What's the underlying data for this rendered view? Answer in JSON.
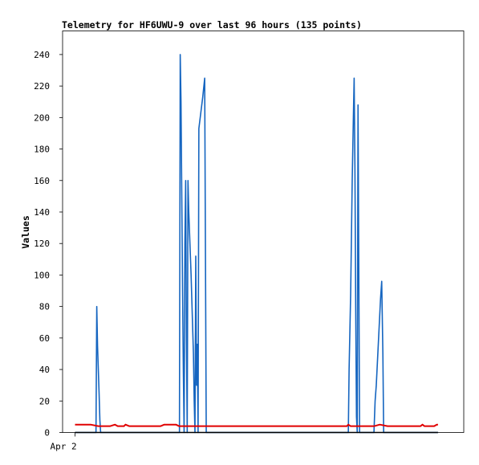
{
  "chart_data": {
    "type": "line",
    "title": "Telemetry for HF6UWU-9 over last 96 hours (135 points)",
    "xlabel": "",
    "ylabel": "Values",
    "ylim": [
      0,
      255
    ],
    "y_ticks": [
      0,
      20,
      40,
      60,
      80,
      100,
      120,
      140,
      160,
      180,
      200,
      220,
      240
    ],
    "x_range": [
      0,
      96
    ],
    "x_ticks": [
      {
        "x": 0,
        "label": "Apr 2"
      }
    ],
    "grid": false,
    "legend": "none",
    "series": [
      {
        "color": "#1565c0",
        "points": [
          [
            0,
            0
          ],
          [
            5.4,
            0
          ],
          [
            5.6,
            80
          ],
          [
            5.8,
            55
          ],
          [
            6.0,
            40
          ],
          [
            6.2,
            25
          ],
          [
            6.4,
            8
          ],
          [
            6.6,
            0
          ],
          [
            26.9,
            0
          ],
          [
            27.1,
            240
          ],
          [
            27.3,
            210
          ],
          [
            27.5,
            150
          ],
          [
            27.7,
            90
          ],
          [
            27.9,
            40
          ],
          [
            28.1,
            0
          ],
          [
            28.3,
            120
          ],
          [
            28.5,
            160
          ],
          [
            28.7,
            60
          ],
          [
            28.9,
            0
          ],
          [
            29.1,
            160
          ],
          [
            29.3,
            140
          ],
          [
            29.6,
            120
          ],
          [
            29.9,
            100
          ],
          [
            30.2,
            75
          ],
          [
            30.5,
            50
          ],
          [
            30.7,
            20
          ],
          [
            30.9,
            0
          ],
          [
            31.1,
            112
          ],
          [
            31.3,
            30
          ],
          [
            31.5,
            56
          ],
          [
            31.7,
            0
          ],
          [
            31.9,
            193
          ],
          [
            32.4,
            203
          ],
          [
            32.9,
            213
          ],
          [
            33.4,
            225
          ],
          [
            33.6,
            112
          ],
          [
            33.8,
            0
          ],
          [
            70.4,
            0
          ],
          [
            70.6,
            40
          ],
          [
            71.0,
            88
          ],
          [
            71.4,
            160
          ],
          [
            71.7,
            200
          ],
          [
            71.9,
            225
          ],
          [
            72.1,
            168
          ],
          [
            72.3,
            80
          ],
          [
            72.5,
            10
          ],
          [
            72.7,
            0
          ],
          [
            72.9,
            208
          ],
          [
            73.1,
            103
          ],
          [
            73.3,
            0
          ],
          [
            77.0,
            0
          ],
          [
            77.3,
            20
          ],
          [
            77.6,
            30
          ],
          [
            78.0,
            50
          ],
          [
            78.4,
            70
          ],
          [
            78.7,
            85
          ],
          [
            79.0,
            96
          ],
          [
            79.3,
            50
          ],
          [
            79.5,
            0
          ],
          [
            93.5,
            0
          ]
        ]
      },
      {
        "color": "#e00000",
        "points": [
          [
            0,
            5
          ],
          [
            4,
            5
          ],
          [
            6,
            4
          ],
          [
            9,
            4
          ],
          [
            10.3,
            5
          ],
          [
            11,
            4
          ],
          [
            12.6,
            4
          ],
          [
            13,
            5
          ],
          [
            14,
            4
          ],
          [
            22,
            4
          ],
          [
            23,
            5
          ],
          [
            26,
            5
          ],
          [
            26.8,
            4
          ],
          [
            70,
            4
          ],
          [
            70.4,
            5
          ],
          [
            71,
            4
          ],
          [
            77,
            4
          ],
          [
            78.5,
            5
          ],
          [
            80.5,
            4
          ],
          [
            89,
            4
          ],
          [
            89.5,
            5
          ],
          [
            90,
            4
          ],
          [
            92.5,
            4
          ],
          [
            93.2,
            5
          ],
          [
            93.5,
            5
          ]
        ]
      },
      {
        "color": "#000000",
        "points": [
          [
            0,
            0
          ],
          [
            93.5,
            0
          ]
        ]
      }
    ]
  }
}
